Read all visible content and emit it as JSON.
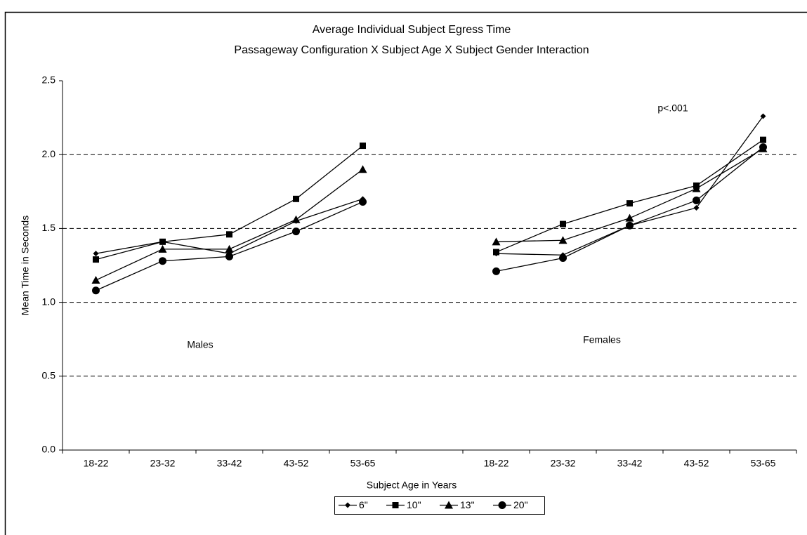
{
  "chart_data": {
    "type": "line",
    "title": "Average Individual Subject Egress Time",
    "subtitle": "Passageway Configuration X Subject Age X Subject Gender Interaction",
    "x_label": "Subject Age in Years",
    "y_label": "Mean Time in Seconds",
    "annotations": [
      "Males",
      "Females",
      "p<.001"
    ],
    "categories": [
      "18-22",
      "23-32",
      "33-42",
      "43-52",
      "53-65",
      null,
      "18-22",
      "23-32",
      "33-42",
      "43-52",
      "53-65"
    ],
    "series": [
      {
        "name": "6\"",
        "color": "#000000",
        "marker": "diamond",
        "values": [
          1.33,
          1.41,
          1.33,
          1.55,
          1.7,
          null,
          1.33,
          1.32,
          1.52,
          1.64,
          2.26
        ]
      },
      {
        "name": "10\"",
        "color": "#000000",
        "marker": "square",
        "values": [
          1.29,
          1.41,
          1.46,
          1.7,
          2.06,
          null,
          1.34,
          1.53,
          1.67,
          1.79,
          2.1
        ]
      },
      {
        "name": "13\"",
        "color": "#000000",
        "marker": "triangle",
        "values": [
          1.15,
          1.36,
          1.36,
          1.56,
          1.9,
          null,
          1.41,
          1.42,
          1.57,
          1.77,
          2.04
        ]
      },
      {
        "name": "20\"",
        "color": "#000000",
        "marker": "circle",
        "values": [
          1.08,
          1.28,
          1.31,
          1.48,
          1.68,
          null,
          1.21,
          1.3,
          1.52,
          1.69,
          2.05
        ]
      }
    ],
    "ylim": [
      0,
      2.5
    ],
    "yticks": [
      {
        "value": 0,
        "label": "0.0"
      },
      0.5,
      {
        "value": 1,
        "label": "1.0"
      },
      1.5,
      {
        "value": 2,
        "label": "2.0"
      },
      2.5
    ],
    "grid": true,
    "legend": "bottom"
  }
}
